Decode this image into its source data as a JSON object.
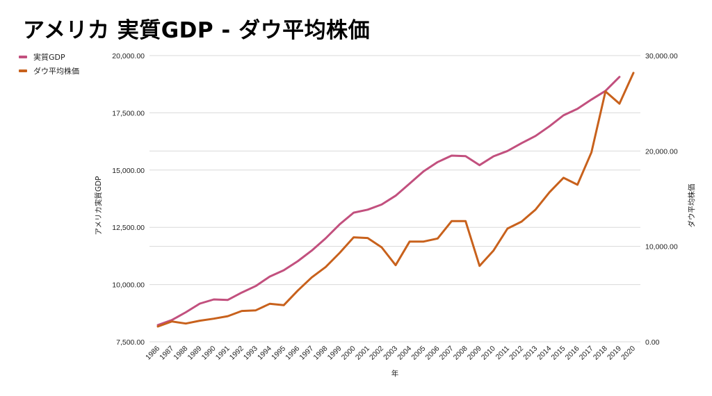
{
  "chart_data": {
    "type": "line",
    "title": "アメリカ 実質GDP - ダウ平均株価",
    "xlabel": "年",
    "ylabel_left": "アメリカ実質GDP",
    "ylabel_right": "ダウ平均株価",
    "legend_position": "top-left",
    "grid": true,
    "categories": [
      "1986",
      "1987",
      "1988",
      "1989",
      "1990",
      "1991",
      "1992",
      "1993",
      "1994",
      "1995",
      "1996",
      "1997",
      "1998",
      "1999",
      "2000",
      "2001",
      "2002",
      "2003",
      "2004",
      "2005",
      "2006",
      "2007",
      "2008",
      "2009",
      "2010",
      "2011",
      "2012",
      "2013",
      "2014",
      "2015",
      "2016",
      "2017",
      "2018",
      "2019",
      "2020"
    ],
    "left_axis": {
      "ylim": [
        7500,
        20000
      ],
      "ticks": [
        7500,
        10000,
        12500,
        15000,
        17500,
        20000
      ],
      "tick_labels": [
        "7,500.00",
        "10,000.00",
        "12,500.00",
        "15,000.00",
        "17,500.00",
        "20,000.00"
      ]
    },
    "right_axis": {
      "ylim": [
        0,
        30000
      ],
      "ticks": [
        0,
        10000,
        20000,
        30000
      ],
      "tick_labels": [
        "0.00",
        "10,000.00",
        "20,000.00",
        "30,000.00"
      ]
    },
    "series": [
      {
        "name": "実質GDP",
        "axis": "left",
        "color": "#C2507E",
        "values": [
          8230,
          8450,
          8790,
          9170,
          9350,
          9330,
          9650,
          9935,
          10350,
          10625,
          11020,
          11485,
          12020,
          12630,
          13140,
          13270,
          13495,
          13880,
          14410,
          14945,
          15350,
          15630,
          15610,
          15215,
          15600,
          15835,
          16175,
          16490,
          16915,
          17390,
          17675,
          18080,
          18460,
          19070,
          null
        ]
      },
      {
        "name": "ダウ平均株価",
        "axis": "right",
        "color": "#C8611C",
        "values": [
          1600,
          2130,
          1915,
          2210,
          2425,
          2690,
          3230,
          3300,
          3980,
          3835,
          5365,
          6750,
          7840,
          9320,
          10950,
          10875,
          9905,
          8035,
          10510,
          10510,
          10830,
          12650,
          12650,
          7960,
          9565,
          11870,
          12600,
          13860,
          15680,
          17190,
          16460,
          19860,
          26240,
          24960,
          28190
        ]
      }
    ]
  }
}
